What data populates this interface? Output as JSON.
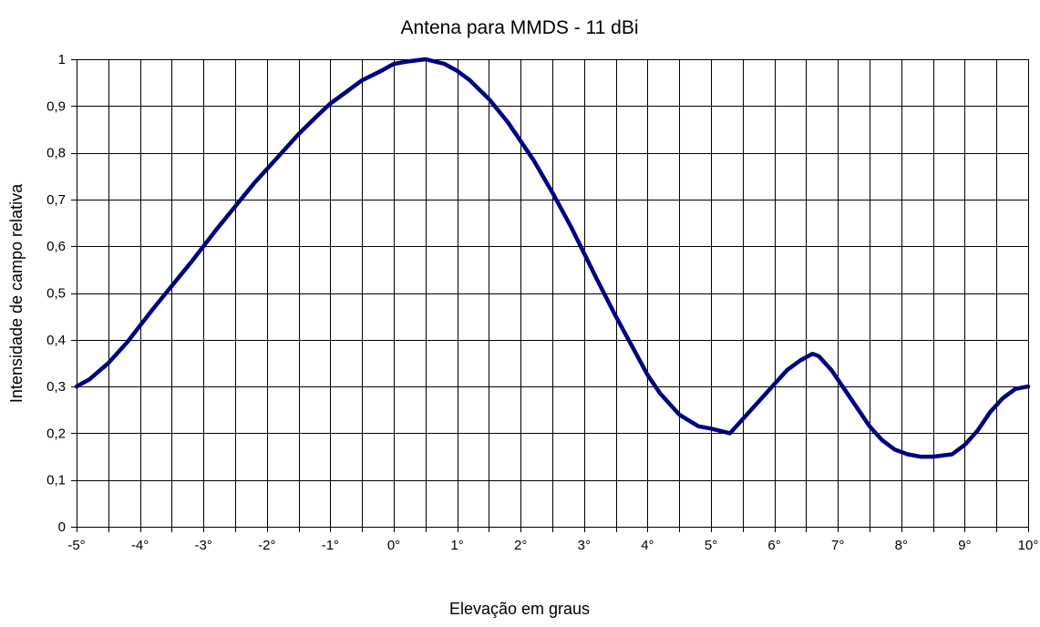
{
  "chart_data": {
    "type": "line",
    "title": "Antena para MMDS - 11 dBi",
    "xlabel": "Elevação em graus",
    "ylabel": "Intensidade de campo relativa",
    "xlim": [
      -5,
      10
    ],
    "ylim": [
      0,
      1
    ],
    "x_ticks": [
      -5,
      -4,
      -3,
      -2,
      -1,
      0,
      1,
      2,
      3,
      4,
      5,
      6,
      7,
      8,
      9,
      10
    ],
    "x_tick_labels": [
      "-5°",
      "-4°",
      "-3°",
      "-2°",
      "-1°",
      "0°",
      "1°",
      "2°",
      "3°",
      "4°",
      "5°",
      "6°",
      "7°",
      "8°",
      "9°",
      "10°"
    ],
    "y_ticks": [
      0,
      0.1,
      0.2,
      0.3,
      0.4,
      0.5,
      0.6,
      0.7,
      0.8,
      0.9,
      1
    ],
    "y_tick_labels": [
      "0",
      "0,1",
      "0,2",
      "0,3",
      "0,4",
      "0,5",
      "0,6",
      "0,7",
      "0,8",
      "0,9",
      "1"
    ],
    "x_minor_step": 0.5,
    "grid": true,
    "legend": "none",
    "color": "#000080",
    "series": [
      {
        "x": [
          -5,
          -4.8,
          -4.5,
          -4.2,
          -4.0,
          -3.8,
          -3.5,
          -3.2,
          -3.0,
          -2.8,
          -2.5,
          -2.2,
          -2.0,
          -1.8,
          -1.5,
          -1.2,
          -1.0,
          -0.8,
          -0.5,
          -0.2,
          0,
          0.2,
          0.5,
          0.8,
          1.0,
          1.2,
          1.5,
          1.8,
          2.0,
          2.2,
          2.5,
          2.8,
          3.0,
          3.2,
          3.5,
          3.8,
          4.0,
          4.2,
          4.5,
          4.8,
          5.0,
          5.3,
          5.5,
          5.8,
          6.0,
          6.2,
          6.4,
          6.6,
          6.7,
          6.9,
          7.1,
          7.3,
          7.5,
          7.7,
          7.9,
          8.1,
          8.3,
          8.5,
          8.8,
          9.0,
          9.2,
          9.4,
          9.6,
          9.8,
          10.0
        ],
        "values": [
          0.3,
          0.315,
          0.35,
          0.395,
          0.43,
          0.465,
          0.515,
          0.565,
          0.6,
          0.635,
          0.685,
          0.735,
          0.765,
          0.795,
          0.84,
          0.88,
          0.905,
          0.925,
          0.955,
          0.975,
          0.99,
          0.995,
          1.0,
          0.99,
          0.975,
          0.955,
          0.915,
          0.865,
          0.825,
          0.785,
          0.715,
          0.64,
          0.585,
          0.53,
          0.45,
          0.375,
          0.325,
          0.285,
          0.24,
          0.215,
          0.21,
          0.2,
          0.23,
          0.275,
          0.305,
          0.335,
          0.355,
          0.37,
          0.365,
          0.335,
          0.295,
          0.255,
          0.215,
          0.185,
          0.165,
          0.155,
          0.15,
          0.15,
          0.155,
          0.175,
          0.205,
          0.245,
          0.275,
          0.295,
          0.3
        ]
      }
    ]
  }
}
